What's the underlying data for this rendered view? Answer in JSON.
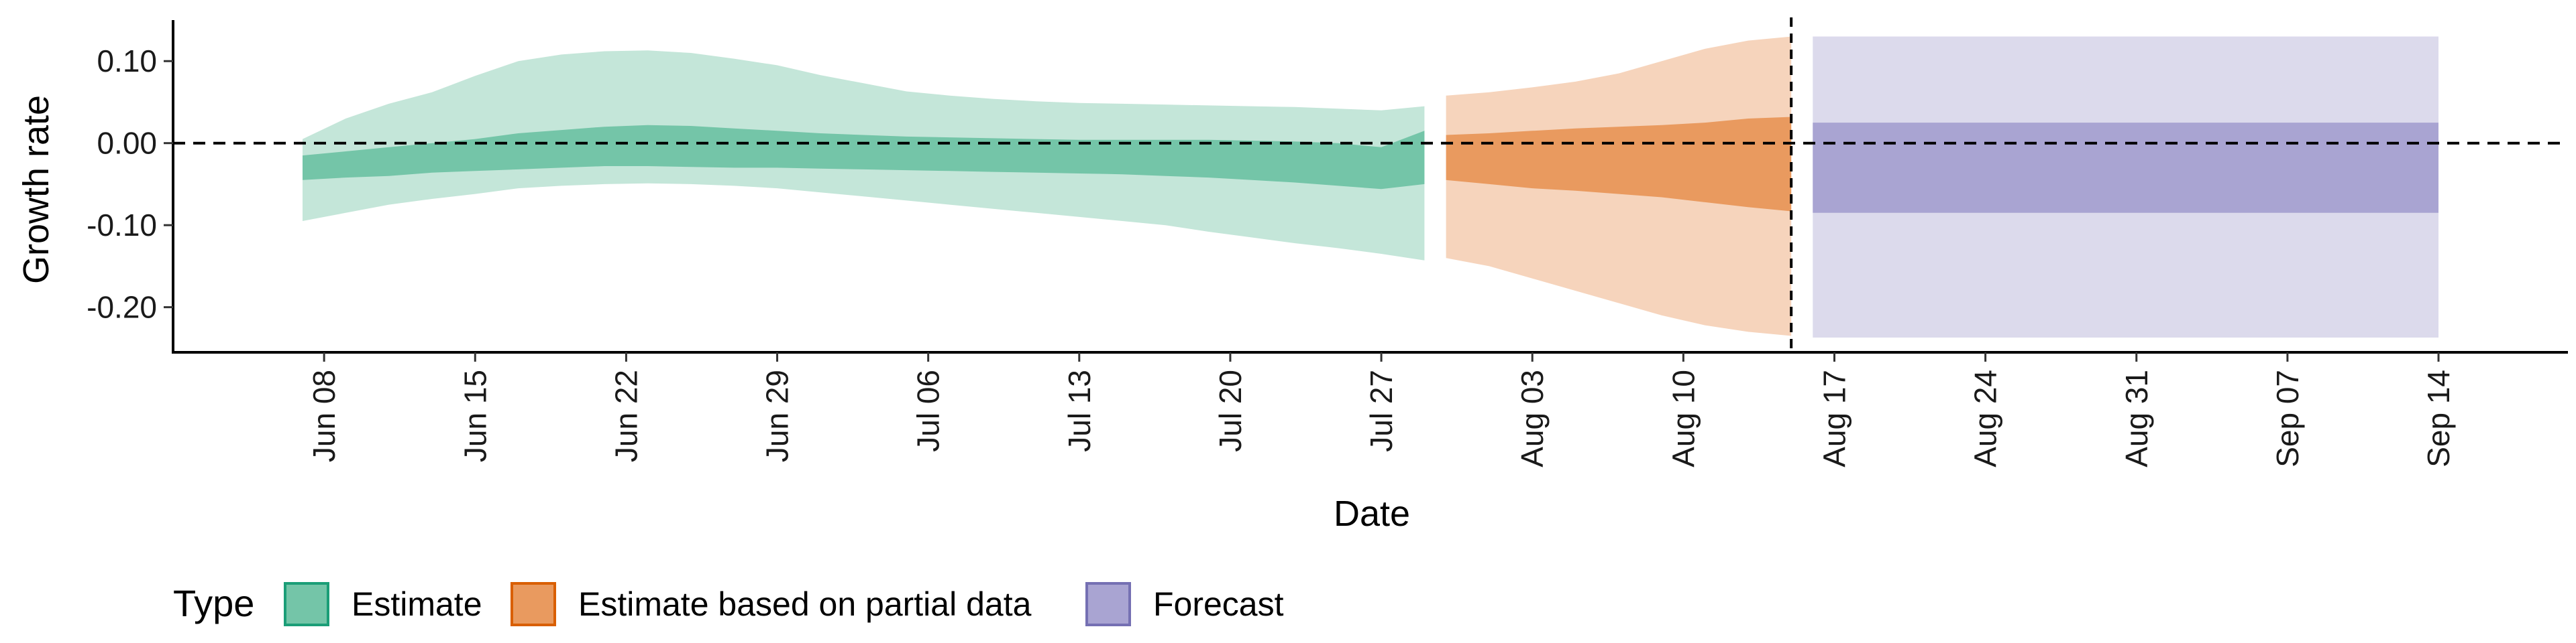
{
  "chart_data": {
    "type": "area",
    "title": "",
    "xlabel": "Date",
    "ylabel": "Growth rate",
    "ylim": [
      -0.255,
      0.15
    ],
    "y_ticks": [
      -0.2,
      -0.1,
      0.0,
      0.1
    ],
    "y_tick_labels": [
      "-0.20",
      "-0.10",
      "0.00",
      "0.10"
    ],
    "x_domain": [
      "2020-06-01",
      "2020-09-20"
    ],
    "x_ticks": [
      "2020-06-08",
      "2020-06-15",
      "2020-06-22",
      "2020-06-29",
      "2020-07-06",
      "2020-07-13",
      "2020-07-20",
      "2020-07-27",
      "2020-08-03",
      "2020-08-10",
      "2020-08-17",
      "2020-08-24",
      "2020-08-31",
      "2020-09-07",
      "2020-09-14"
    ],
    "x_tick_labels": [
      "Jun 08",
      "Jun 15",
      "Jun 22",
      "Jun 29",
      "Jul 06",
      "Jul 13",
      "Jul 20",
      "Jul 27",
      "Aug 03",
      "Aug 10",
      "Aug 17",
      "Aug 24",
      "Aug 31",
      "Sep 07",
      "Sep 14"
    ],
    "reference_lines": {
      "horizontal_y": 0.0,
      "vertical_date": "2020-08-15"
    },
    "legend": {
      "title": "Type",
      "position": "bottom",
      "entries": [
        {
          "label": "Estimate",
          "fill": "#74c5a8",
          "stroke": "#1b9e77"
        },
        {
          "label": "Estimate based on partial data",
          "fill": "#e99a5f",
          "stroke": "#d95f02"
        },
        {
          "label": "Forecast",
          "fill": "#a9a4d2",
          "stroke": "#7570b3"
        }
      ]
    },
    "series": [
      {
        "name": "Estimate",
        "color_outer": "#c4e6d9",
        "color_inner": "#74c5a8",
        "x": [
          "2020-06-07",
          "2020-06-09",
          "2020-06-11",
          "2020-06-13",
          "2020-06-15",
          "2020-06-17",
          "2020-06-19",
          "2020-06-21",
          "2020-06-23",
          "2020-06-25",
          "2020-06-27",
          "2020-06-29",
          "2020-07-01",
          "2020-07-03",
          "2020-07-05",
          "2020-07-07",
          "2020-07-09",
          "2020-07-11",
          "2020-07-13",
          "2020-07-15",
          "2020-07-17",
          "2020-07-19",
          "2020-07-21",
          "2020-07-23",
          "2020-07-25",
          "2020-07-27",
          "2020-07-29"
        ],
        "upper90": [
          0.005,
          0.03,
          0.048,
          0.062,
          0.082,
          0.1,
          0.108,
          0.112,
          0.113,
          0.11,
          0.103,
          0.095,
          0.083,
          0.073,
          0.063,
          0.058,
          0.054,
          0.051,
          0.049,
          0.048,
          0.047,
          0.046,
          0.045,
          0.044,
          0.042,
          0.04,
          0.045
        ],
        "upper50": [
          -0.015,
          -0.01,
          -0.005,
          0.0,
          0.005,
          0.012,
          0.016,
          0.02,
          0.022,
          0.021,
          0.018,
          0.015,
          0.012,
          0.01,
          0.008,
          0.007,
          0.006,
          0.005,
          0.004,
          0.004,
          0.004,
          0.004,
          0.003,
          0.002,
          0.0,
          -0.005,
          0.015
        ],
        "lower50": [
          -0.045,
          -0.042,
          -0.04,
          -0.036,
          -0.034,
          -0.032,
          -0.03,
          -0.028,
          -0.028,
          -0.029,
          -0.03,
          -0.03,
          -0.031,
          -0.032,
          -0.033,
          -0.034,
          -0.035,
          -0.036,
          -0.037,
          -0.038,
          -0.04,
          -0.042,
          -0.045,
          -0.048,
          -0.052,
          -0.056,
          -0.05
        ],
        "lower90": [
          -0.095,
          -0.085,
          -0.075,
          -0.068,
          -0.062,
          -0.055,
          -0.052,
          -0.05,
          -0.049,
          -0.05,
          -0.052,
          -0.055,
          -0.06,
          -0.065,
          -0.07,
          -0.075,
          -0.08,
          -0.085,
          -0.09,
          -0.095,
          -0.1,
          -0.108,
          -0.115,
          -0.122,
          -0.128,
          -0.135,
          -0.143
        ]
      },
      {
        "name": "Estimate based on partial data",
        "color_outer": "#f6d4bc",
        "color_inner": "#e99a5f",
        "x": [
          "2020-07-30",
          "2020-08-01",
          "2020-08-03",
          "2020-08-05",
          "2020-08-07",
          "2020-08-09",
          "2020-08-11",
          "2020-08-13",
          "2020-08-15"
        ],
        "upper90": [
          0.058,
          0.062,
          0.068,
          0.075,
          0.085,
          0.1,
          0.115,
          0.125,
          0.13
        ],
        "upper50": [
          0.01,
          0.012,
          0.015,
          0.018,
          0.02,
          0.022,
          0.025,
          0.03,
          0.032
        ],
        "lower50": [
          -0.045,
          -0.05,
          -0.055,
          -0.058,
          -0.062,
          -0.066,
          -0.072,
          -0.078,
          -0.083
        ],
        "lower90": [
          -0.14,
          -0.15,
          -0.165,
          -0.18,
          -0.195,
          -0.21,
          -0.222,
          -0.23,
          -0.235
        ]
      },
      {
        "name": "Forecast",
        "color_outer": "#dcdaec",
        "color_inner": "#a9a4d2",
        "x": [
          "2020-08-16",
          "2020-09-14"
        ],
        "upper90": [
          0.13,
          0.13
        ],
        "upper50": [
          0.025,
          0.025
        ],
        "lower50": [
          -0.085,
          -0.085
        ],
        "lower90": [
          -0.237,
          -0.237
        ]
      }
    ]
  }
}
